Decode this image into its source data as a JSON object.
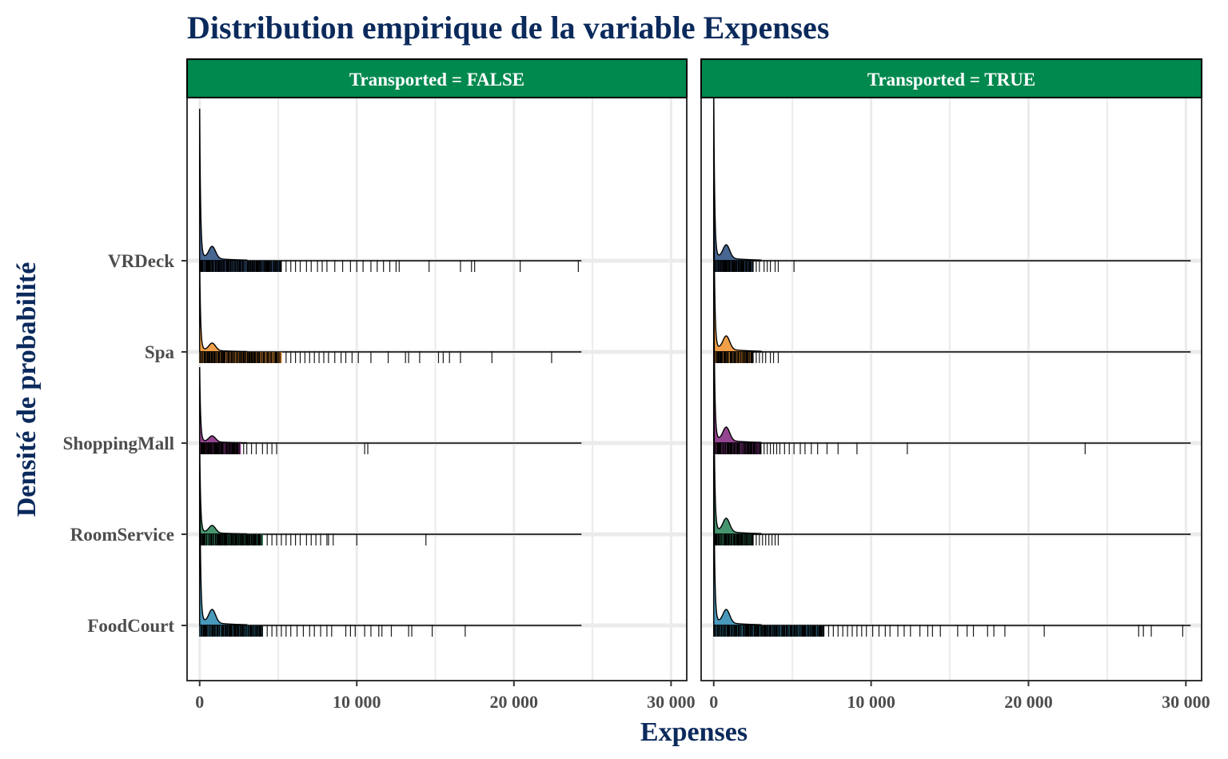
{
  "chart_data": {
    "type": "ridgeline",
    "title": "Distribution empirique de la variable Expenses",
    "xlabel": "Expenses",
    "ylabel": "Densité de probabilité",
    "xlim": [
      -800,
      31000
    ],
    "xticks": [
      0,
      10000,
      20000,
      30000
    ],
    "xtick_labels": [
      "0",
      "10 000",
      "20 000",
      "30 000"
    ],
    "grid": true,
    "categories": [
      "FoodCourt",
      "RoomService",
      "ShoppingMall",
      "Spa",
      "VRDeck"
    ],
    "category_colors": {
      "FoodCourt": "#3f93b8",
      "RoomService": "#3c8f67",
      "ShoppingMall": "#8e3b8a",
      "Spa": "#f09a3e",
      "VRDeck": "#3d5e8c"
    },
    "strip_color": "#00894f",
    "panels": [
      {
        "strip_label": "Transported = FALSE",
        "ridges": [
          {
            "category": "FoodCourt",
            "line_max": 24300,
            "peak": 1.0,
            "sparse_max": 4000,
            "dense_max": 4000,
            "outliers": [
              4300,
              4600,
              4900,
              5200,
              5500,
              5800,
              6200,
              6600,
              7000,
              7300,
              7700,
              8100,
              8400,
              9300,
              9600,
              9900,
              10500,
              10900,
              11400,
              11600,
              12200,
              13300,
              13500,
              14800,
              16900
            ]
          },
          {
            "category": "RoomService",
            "line_max": 24300,
            "peak": 0.55,
            "dense_max": 4000,
            "outliers": [
              4300,
              4600,
              4900,
              5200,
              5500,
              5800,
              6100,
              6400,
              6800,
              7100,
              7400,
              7700,
              8100,
              8200,
              8500,
              10000,
              14400
            ]
          },
          {
            "category": "ShoppingMall",
            "line_max": 24300,
            "peak": 0.45,
            "dense_max": 2600,
            "outliers": [
              2800,
              3000,
              3300,
              3600,
              4000,
              4300,
              4600,
              4900,
              10500,
              10700
            ]
          },
          {
            "category": "Spa",
            "line_max": 24300,
            "peak": 0.55,
            "dense_max": 5200,
            "outliers": [
              5500,
              5800,
              6100,
              6400,
              6700,
              7000,
              7300,
              7600,
              7900,
              8200,
              8600,
              9000,
              9300,
              9700,
              10100,
              10900,
              12000,
              13100,
              13300,
              14000,
              15200,
              15500,
              15900,
              16600,
              18600,
              22400
            ]
          },
          {
            "category": "VRDeck",
            "line_max": 24300,
            "peak": 0.9,
            "dense_max": 5200,
            "outliers": [
              5500,
              5800,
              6100,
              6400,
              6800,
              7100,
              7500,
              7800,
              8100,
              8600,
              9100,
              9600,
              10000,
              10400,
              10900,
              11300,
              11700,
              12100,
              12500,
              12700,
              14600,
              16600,
              17300,
              17500,
              20400,
              24100
            ]
          }
        ]
      },
      {
        "strip_label": "Transported = TRUE",
        "ridges": [
          {
            "category": "FoodCourt",
            "line_max": 30300,
            "peak": 1.0,
            "dense_max": 7000,
            "outliers": [
              7300,
              7600,
              7900,
              8200,
              8500,
              8800,
              9100,
              9400,
              9700,
              10100,
              10500,
              10900,
              11200,
              11700,
              12100,
              12500,
              13100,
              13600,
              13900,
              14400,
              15500,
              16100,
              16500,
              17400,
              17800,
              18500,
              21000,
              27000,
              27300,
              27800,
              29800
            ]
          },
          {
            "category": "RoomService",
            "line_max": 30300,
            "peak": 1.0,
            "dense_max": 2500,
            "outliers": [
              2700,
              2900,
              3100,
              3300,
              3500,
              3700,
              3900,
              4100
            ]
          },
          {
            "category": "ShoppingMall",
            "line_max": 30300,
            "peak": 1.0,
            "dense_max": 3000,
            "outliers": [
              3200,
              3400,
              3600,
              3800,
              4000,
              4200,
              4500,
              4800,
              5100,
              5500,
              5800,
              6200,
              6600,
              7200,
              7900,
              9100,
              12300,
              23600
            ]
          },
          {
            "category": "Spa",
            "line_max": 30300,
            "peak": 1.0,
            "dense_max": 2500,
            "outliers": [
              2700,
              2900,
              3100,
              3300,
              3600,
              3800,
              4100
            ]
          },
          {
            "category": "VRDeck",
            "line_max": 30300,
            "peak": 1.0,
            "dense_max": 2500,
            "outliers": [
              2700,
              2900,
              3200,
              3400,
              3600,
              3900,
              4100,
              5100
            ]
          }
        ]
      }
    ]
  }
}
